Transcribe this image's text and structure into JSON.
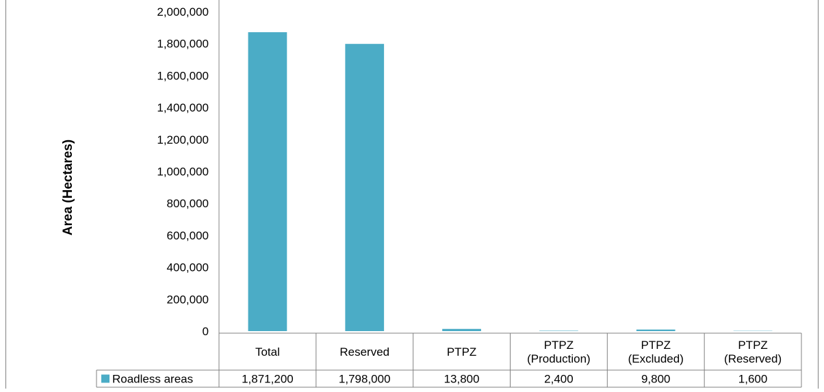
{
  "chart_data": {
    "type": "bar",
    "categories": [
      [
        "Total"
      ],
      [
        "Reserved"
      ],
      [
        "PTPZ"
      ],
      [
        "PTPZ",
        "(Production)"
      ],
      [
        "PTPZ",
        "(Excluded)"
      ],
      [
        "PTPZ",
        "(Reserved)"
      ]
    ],
    "series": [
      {
        "name": "Roadless areas",
        "values": [
          1871200,
          1798000,
          13800,
          2400,
          9800,
          1600
        ],
        "value_labels": [
          "1,871,200",
          "1,798,000",
          "13,800",
          "2,400",
          "9,800",
          "1,600"
        ],
        "color": "#4bacc6"
      }
    ],
    "ylabel": "Area (Hectares)",
    "xlabel": "",
    "title": "",
    "ylim": [
      0,
      2000000
    ],
    "yticks": [
      0,
      200000,
      400000,
      600000,
      800000,
      1000000,
      1200000,
      1400000,
      1600000,
      1800000,
      2000000
    ],
    "ytick_labels": [
      "0",
      "200,000",
      "400,000",
      "600,000",
      "800,000",
      "1,000,000",
      "1,200,000",
      "1,400,000",
      "1,600,000",
      "1,800,000",
      "2,000,000"
    ],
    "grid": false,
    "legend": "data-table",
    "data_table": true
  },
  "colors": {
    "bar": "#4bacc6",
    "border": "#808080",
    "axis_line": "#868686",
    "text": "#000000"
  }
}
